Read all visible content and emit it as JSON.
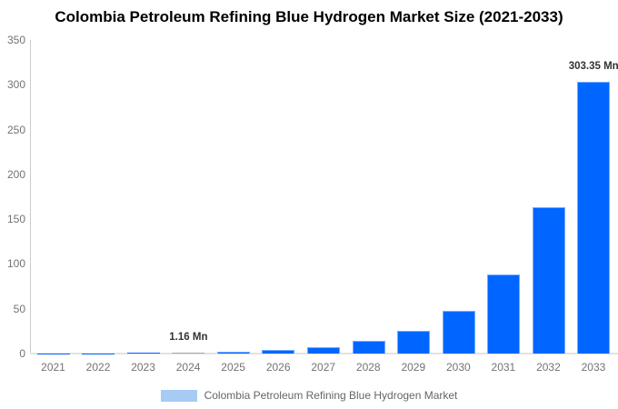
{
  "title": "Colombia Petroleum Refining Blue Hydrogen Market Size (2021-2033)",
  "legend": {
    "label": "Colombia Petroleum Refining Blue Hydrogen Market",
    "swatch_color": "#a7ccf4"
  },
  "colors": {
    "bar_fill": "#0066ff",
    "highlight_bar_fill": "#7d7d7d",
    "highlight_bar_border": "#a8a8a8",
    "axis_line": "#cccccc",
    "baseline": "#e3e3e3",
    "tick_text": "#737373",
    "value_label_text": "#333333",
    "legend_text": "#666666",
    "title_text": "#000000",
    "background": "#ffffff"
  },
  "chart_data": {
    "type": "bar",
    "title": "Colombia Petroleum Refining Blue Hydrogen Market Size (2021-2033)",
    "categories": [
      "2021",
      "2022",
      "2023",
      "2024",
      "2025",
      "2026",
      "2027",
      "2028",
      "2029",
      "2030",
      "2031",
      "2032",
      "2033"
    ],
    "values": [
      0.18,
      0.34,
      0.62,
      1.16,
      2.15,
      4.0,
      7.42,
      13.77,
      25.56,
      47.44,
      88.06,
      163.44,
      303.35
    ],
    "unit": "Mn",
    "xlabel": "",
    "ylabel": "",
    "ylim": [
      0,
      350
    ],
    "y_ticks": [
      350,
      300,
      250,
      200,
      150,
      100,
      50,
      0
    ],
    "grid": false,
    "legend_position": "bottom",
    "legend_entries": [
      "Colombia Petroleum Refining Blue Hydrogen Market"
    ],
    "highlight_category": "2024",
    "point_labels": [
      {
        "category": "2024",
        "text": "1.16 Mn"
      },
      {
        "category": "2033",
        "text": "303.35 Mn"
      }
    ]
  }
}
